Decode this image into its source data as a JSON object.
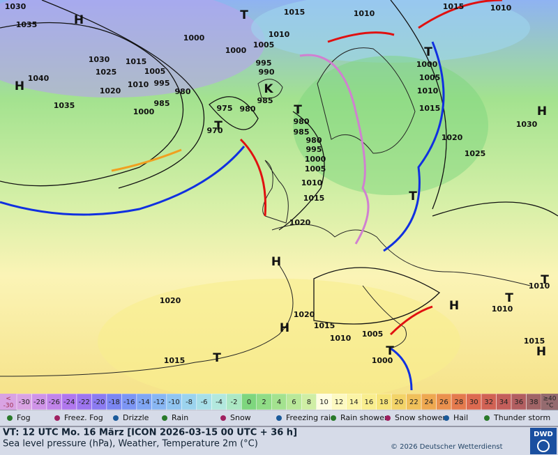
{
  "map": {
    "isobar_labels": [
      "1030",
      "1035",
      "1040",
      "1035",
      "1030",
      "1025",
      "1020",
      "1015",
      "1010",
      "1005",
      "1000",
      "995",
      "985",
      "980",
      "975",
      "980",
      "970",
      "1000",
      "1000",
      "1005",
      "1010",
      "1015",
      "1010",
      "1015",
      "1010",
      "995",
      "990",
      "985",
      "980",
      "985",
      "980",
      "995",
      "1000",
      "1005",
      "1010",
      "1015",
      "1020",
      "1000",
      "1005",
      "1010",
      "1015",
      "1020",
      "1025",
      "1030",
      "1020",
      "1020",
      "1015",
      "1010",
      "1005",
      "1000",
      "1015",
      "1010",
      "1010",
      "1015"
    ],
    "centers": [
      "H",
      "T",
      "H",
      "T",
      "T",
      "T",
      "H",
      "T",
      "H",
      "H",
      "T",
      "H",
      "T",
      "T",
      "H",
      "T",
      "K"
    ]
  },
  "scale": {
    "low": "<",
    "high": "≥40",
    "unit": "°C",
    "cells": [
      {
        "value": -30,
        "color": "#d9a3e3"
      },
      {
        "value": -28,
        "color": "#cf93e8"
      },
      {
        "value": -26,
        "color": "#c184ea"
      },
      {
        "value": -24,
        "color": "#b077ee"
      },
      {
        "value": -22,
        "color": "#9d75ef"
      },
      {
        "value": -20,
        "color": "#8b7bf1"
      },
      {
        "value": -18,
        "color": "#7b86f2"
      },
      {
        "value": -16,
        "color": "#7c95f4"
      },
      {
        "value": -14,
        "color": "#80a6f4"
      },
      {
        "value": -12,
        "color": "#88b6f3"
      },
      {
        "value": -10,
        "color": "#90c5f1"
      },
      {
        "value": -8,
        "color": "#9bd3ee"
      },
      {
        "value": -6,
        "color": "#a7dfe8"
      },
      {
        "value": -4,
        "color": "#b2e8de"
      },
      {
        "value": -2,
        "color": "#ace8c4"
      },
      {
        "value": 0,
        "color": "#7ed67e"
      },
      {
        "value": 2,
        "color": "#90dc86"
      },
      {
        "value": 4,
        "color": "#a3e28f"
      },
      {
        "value": 6,
        "color": "#b9e899"
      },
      {
        "value": 8,
        "color": "#cfeea4"
      },
      {
        "value": 10,
        "color": "#fffde0"
      },
      {
        "value": 12,
        "color": "#fdf9c0"
      },
      {
        "value": 14,
        "color": "#fbf4a6"
      },
      {
        "value": 16,
        "color": "#f9ee8e"
      },
      {
        "value": 18,
        "color": "#f6e479"
      },
      {
        "value": 20,
        "color": "#f3d468"
      },
      {
        "value": 22,
        "color": "#f0c05a"
      },
      {
        "value": 24,
        "color": "#eea850"
      },
      {
        "value": 26,
        "color": "#ea904d"
      },
      {
        "value": 28,
        "color": "#e47a4d"
      },
      {
        "value": 30,
        "color": "#dc6a50"
      },
      {
        "value": 32,
        "color": "#d16254"
      },
      {
        "value": 34,
        "color": "#c35e5a"
      },
      {
        "value": 36,
        "color": "#b25e60"
      },
      {
        "value": 38,
        "color": "#a06466"
      }
    ]
  },
  "legend": [
    "Fog",
    "Freez. Fog",
    "Drizzle",
    "Rain",
    "Snow",
    "Freezing rain",
    "Rain shower",
    "Snow shower",
    "Hail",
    "Thunder storm"
  ],
  "footer": {
    "valid_time": "VT: 12 UTC Mo.  16 März [ICON 2026-03-15  00 UTC + 36 h]",
    "subtitle": "Sea level pressure (hPa), Weather, Temperature 2m (°C)",
    "copyright": "© 2026 Deutscher Wetterdienst",
    "logo": "DWD"
  }
}
